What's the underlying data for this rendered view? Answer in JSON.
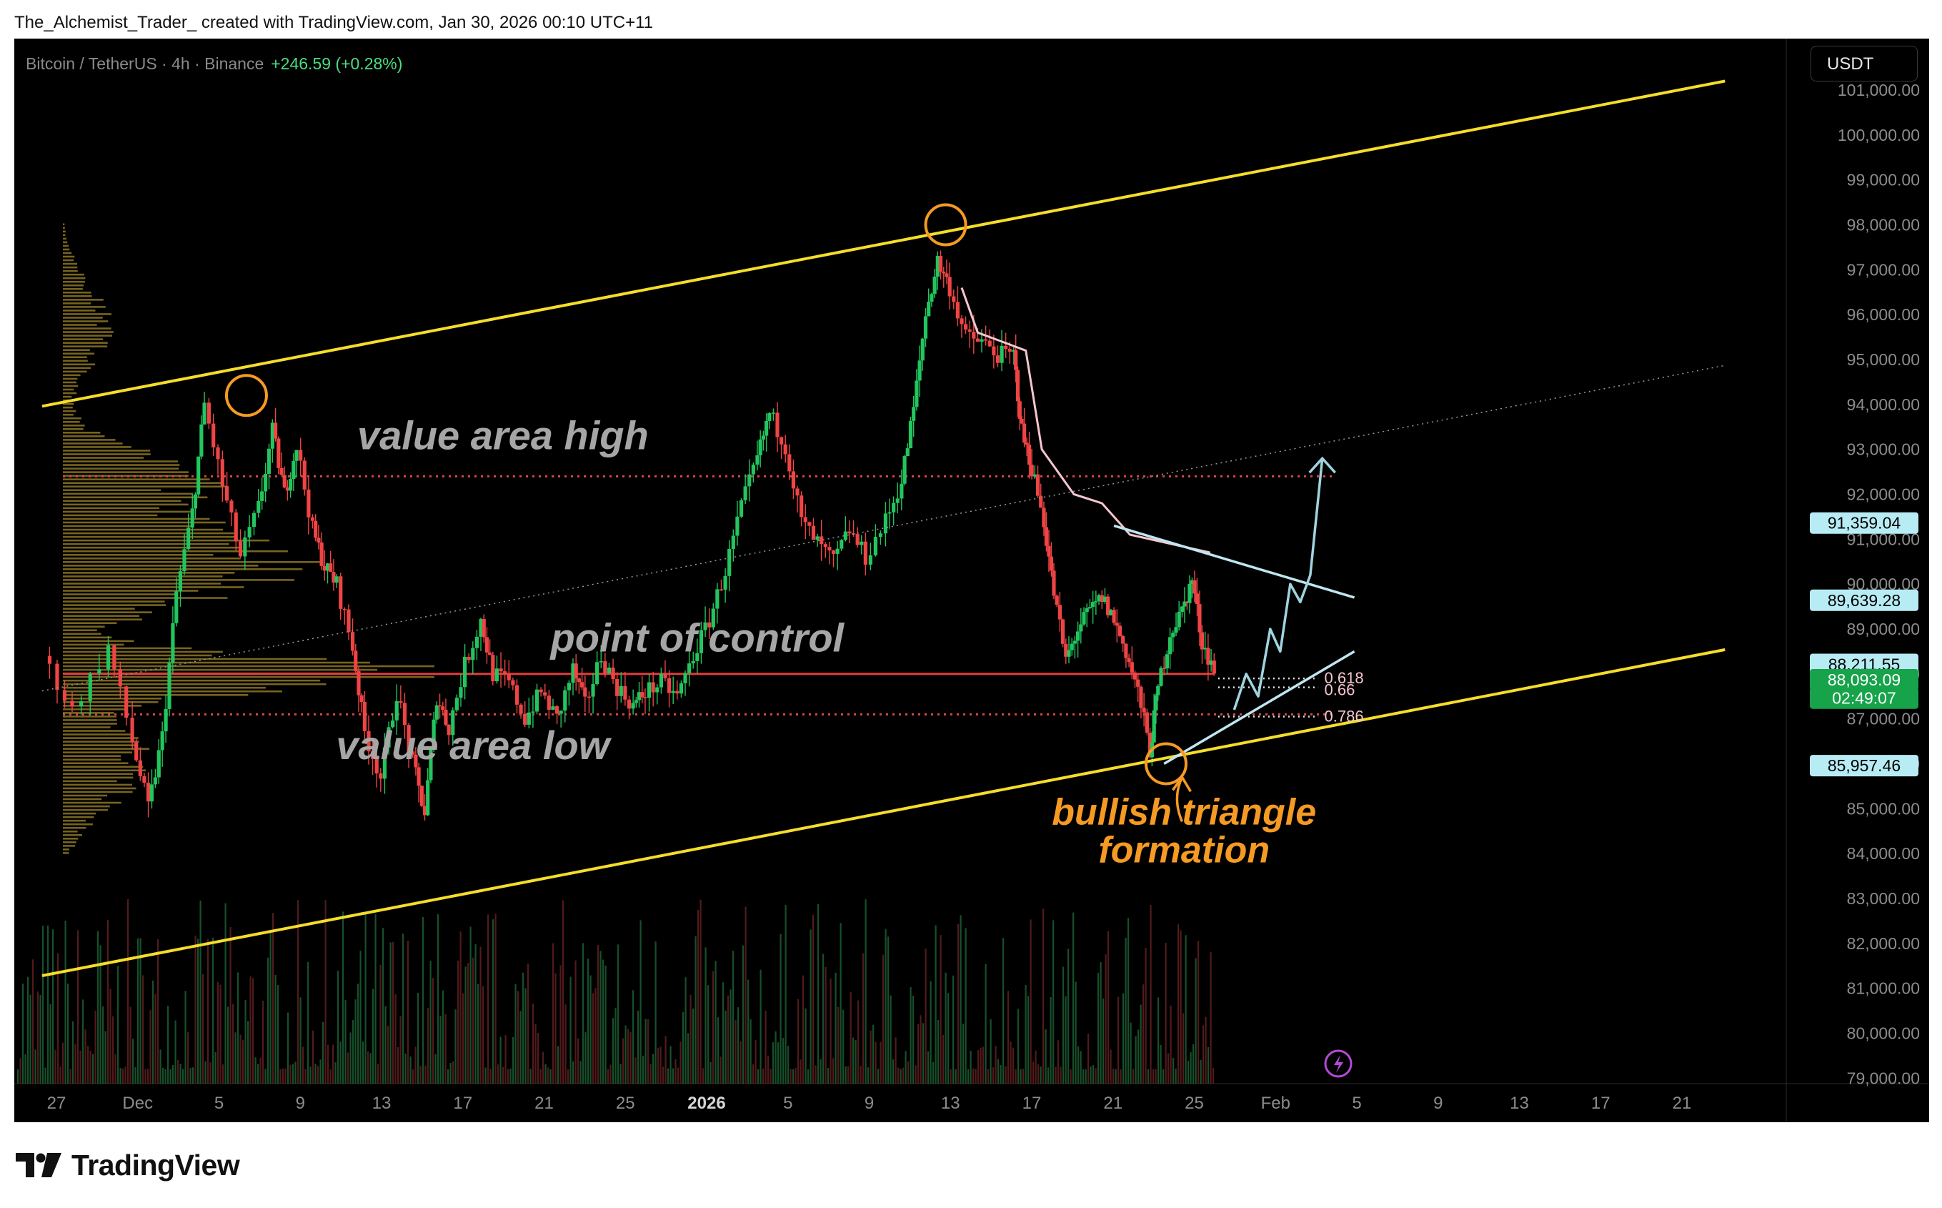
{
  "header": {
    "caption": "The_Alchemist_Trader_ created with TradingView.com, Jan 30, 2026 00:10 UTC+11"
  },
  "symbol_bar": {
    "symbol": "Bitcoin / TetherUS · 4h · Binance",
    "change": "+246.59 (+0.28%)"
  },
  "currency_button": "USDT",
  "footer": {
    "logo_text": "TradingView"
  },
  "colors": {
    "background": "#000000",
    "channel": "#f5dd2a",
    "poc_line": "#e23b3b",
    "value_area_dots": "#d9464a",
    "candle_up": "#22c55e",
    "candle_down": "#ef4444",
    "volume_profile": "#d8b63a",
    "triangle_lines": "#bfe6f1",
    "projection": "#9fd4df",
    "vwap_line": "#f5c6cf",
    "annotation_grey": "#a6a6a6",
    "annotation_orange": "#f59a23",
    "current_price_bg": "#16a34a"
  },
  "chart_data": {
    "type": "candlestick",
    "symbol": "Bitcoin / TetherUS",
    "timeframe": "4h",
    "exchange": "Binance",
    "y_axis": {
      "ticks": [
        "101,000.00",
        "100,000.00",
        "99,000.00",
        "98,000.00",
        "97,000.00",
        "96,000.00",
        "95,000.00",
        "94,000.00",
        "93,000.00",
        "92,000.00",
        "91,000.00",
        "90,000.00",
        "89,000.00",
        "88,000.00",
        "87,000.00",
        "86,000.00",
        "85,000.00",
        "84,000.00",
        "83,000.00",
        "82,000.00",
        "81,000.00",
        "80,000.00",
        "79,000.00"
      ],
      "range": [
        78800,
        101300
      ]
    },
    "x_axis": {
      "ticks": [
        {
          "label": "27",
          "bold": false
        },
        {
          "label": "Dec",
          "bold": false
        },
        {
          "label": "5",
          "bold": false
        },
        {
          "label": "9",
          "bold": false
        },
        {
          "label": "13",
          "bold": false
        },
        {
          "label": "17",
          "bold": false
        },
        {
          "label": "21",
          "bold": false
        },
        {
          "label": "25",
          "bold": false
        },
        {
          "label": "2026",
          "bold": true
        },
        {
          "label": "5",
          "bold": false
        },
        {
          "label": "9",
          "bold": false
        },
        {
          "label": "13",
          "bold": false
        },
        {
          "label": "17",
          "bold": false
        },
        {
          "label": "21",
          "bold": false
        },
        {
          "label": "25",
          "bold": false
        },
        {
          "label": "Feb",
          "bold": false
        },
        {
          "label": "5",
          "bold": false
        },
        {
          "label": "9",
          "bold": false
        },
        {
          "label": "13",
          "bold": false
        },
        {
          "label": "17",
          "bold": false
        },
        {
          "label": "21",
          "bold": false
        }
      ]
    },
    "price_path": [
      [
        -1.5,
        88400
      ],
      [
        0,
        87200
      ],
      [
        1.8,
        88600
      ],
      [
        3,
        86500
      ],
      [
        3.8,
        85000
      ],
      [
        4.5,
        86600
      ],
      [
        5.2,
        89800
      ],
      [
        6,
        91600
      ],
      [
        6.6,
        94000
      ],
      [
        7.5,
        92200
      ],
      [
        8.4,
        90600
      ],
      [
        9.3,
        91700
      ],
      [
        10,
        93400
      ],
      [
        10.6,
        92000
      ],
      [
        11.2,
        93100
      ],
      [
        12,
        91200
      ],
      [
        12.6,
        90400
      ],
      [
        13.2,
        90000
      ],
      [
        14,
        88600
      ],
      [
        14.6,
        86700
      ],
      [
        15.4,
        85700
      ],
      [
        16.2,
        87600
      ],
      [
        17,
        86000
      ],
      [
        17.6,
        84900
      ],
      [
        18.2,
        87500
      ],
      [
        18.8,
        86800
      ],
      [
        19.6,
        88200
      ],
      [
        20.4,
        89200
      ],
      [
        21,
        88000
      ],
      [
        21.8,
        87800
      ],
      [
        22.6,
        87000
      ],
      [
        23.4,
        87600
      ],
      [
        24.2,
        87000
      ],
      [
        25,
        88100
      ],
      [
        25.6,
        87300
      ],
      [
        26.4,
        88400
      ],
      [
        27.2,
        87700
      ],
      [
        28,
        87300
      ],
      [
        28.6,
        87600
      ],
      [
        29.4,
        87800
      ],
      [
        30.2,
        87500
      ],
      [
        31,
        88400
      ],
      [
        31.8,
        89200
      ],
      [
        32.6,
        90300
      ],
      [
        33.4,
        91700
      ],
      [
        34.2,
        92800
      ],
      [
        34.8,
        93800
      ],
      [
        35.6,
        93100
      ],
      [
        36.4,
        91400
      ],
      [
        37.2,
        90900
      ],
      [
        38,
        90500
      ],
      [
        38.8,
        91200
      ],
      [
        39.6,
        90600
      ],
      [
        40.6,
        91400
      ],
      [
        41.4,
        92300
      ],
      [
        42,
        93900
      ],
      [
        42.6,
        96000
      ],
      [
        43.2,
        97200
      ],
      [
        43.8,
        96600
      ],
      [
        44.6,
        95500
      ],
      [
        45.4,
        95400
      ],
      [
        46.2,
        95100
      ],
      [
        47,
        95100
      ],
      [
        47.4,
        93400
      ],
      [
        47.9,
        92600
      ],
      [
        48.5,
        91400
      ],
      [
        49,
        89800
      ],
      [
        49.6,
        88300
      ],
      [
        50.2,
        89000
      ],
      [
        50.8,
        89400
      ],
      [
        51.4,
        89700
      ],
      [
        52,
        89200
      ],
      [
        52.6,
        88500
      ],
      [
        53.2,
        87600
      ],
      [
        53.8,
        86300
      ],
      [
        54.2,
        87700
      ],
      [
        54.8,
        88900
      ],
      [
        55.4,
        89400
      ],
      [
        55.9,
        90100
      ],
      [
        56.4,
        88700
      ],
      [
        57,
        88093
      ]
    ],
    "last_index": 57,
    "candles_per_path_segment": 4,
    "volume_profile": {
      "price_range": [
        84000,
        98000
      ],
      "shape_centers": [
        {
          "price": 88000,
          "weight": 1.0,
          "spread": 500
        },
        {
          "price": 90400,
          "weight": 0.6,
          "spread": 1100
        },
        {
          "price": 92300,
          "weight": 0.35,
          "spread": 900
        },
        {
          "price": 86000,
          "weight": 0.22,
          "spread": 1300
        },
        {
          "price": 95700,
          "weight": 0.12,
          "spread": 1300
        }
      ]
    },
    "overlays": {
      "channel_upper": {
        "from": [
          -1.5,
          93960
        ],
        "to": [
          82.5,
          101200
        ]
      },
      "channel_middle": {
        "from": [
          -1.5,
          87620
        ],
        "to": [
          82.5,
          94870
        ]
      },
      "channel_lower": {
        "from": [
          -1.5,
          81280
        ],
        "to": [
          82.5,
          88540
        ]
      },
      "point_of_control": 88000,
      "value_area_high": 92400,
      "value_area_low": 87100,
      "poc_extends_to_index": 57,
      "triangle_upper": {
        "from": [
          52,
          91300
        ],
        "to": [
          64,
          89700
        ]
      },
      "triangle_lower": {
        "from": [
          54.5,
          86000
        ],
        "to": [
          64,
          88500
        ]
      },
      "vwap_line": [
        [
          44.4,
          96600
        ],
        [
          45.2,
          95600
        ],
        [
          47.6,
          95200
        ],
        [
          48.4,
          93000
        ],
        [
          50,
          92000
        ],
        [
          51.4,
          91800
        ],
        [
          52.8,
          91100
        ],
        [
          56.8,
          90700
        ]
      ],
      "projection_path": [
        [
          58,
          87200
        ],
        [
          58.6,
          88000
        ],
        [
          59.2,
          87500
        ],
        [
          59.8,
          89000
        ],
        [
          60.3,
          88500
        ],
        [
          60.8,
          90000
        ],
        [
          61.3,
          89600
        ],
        [
          61.8,
          90200
        ],
        [
          62.4,
          92800
        ]
      ],
      "fib_levels": [
        {
          "label": "0.618",
          "price": 87900
        },
        {
          "label": "0.66",
          "price": 87700
        },
        {
          "label": "0.786",
          "price": 87050
        }
      ],
      "circles": [
        {
          "index": 8.7,
          "price": 94200
        },
        {
          "index": 43.6,
          "price": 98000
        },
        {
          "index": 54.6,
          "price": 86000
        }
      ]
    },
    "annotations": [
      {
        "text": "value area high",
        "index": 21.5,
        "price": 93000,
        "color": "grey"
      },
      {
        "text": "point of control",
        "index": 31.2,
        "price": 88500,
        "color": "grey"
      },
      {
        "text": "value area low",
        "index": 20,
        "price": 86100,
        "color": "grey"
      },
      {
        "text": "bullish triangle",
        "index": 55.5,
        "price": 84650,
        "color": "orange"
      },
      {
        "text": "formation",
        "index": 55.5,
        "price": 83800,
        "color": "orange"
      }
    ],
    "price_labels": [
      {
        "text": "91,359.04",
        "price": 91359.04,
        "bg": "#b8ecf5",
        "color": "#000000"
      },
      {
        "text": "89,639.28",
        "price": 89639.28,
        "bg": "#b8ecf5",
        "color": "#000000"
      },
      {
        "text": "88,211.55",
        "price": 88211.55,
        "bg": "#b8ecf5",
        "color": "#000000"
      },
      {
        "text": "88,093.09",
        "price": 87870,
        "bg": "#16a34a",
        "color": "#ffffff"
      },
      {
        "text": "02:49:07",
        "price": 87460,
        "bg": "#16a34a",
        "color": "#ffffff"
      },
      {
        "text": "85,957.46",
        "price": 85957.46,
        "bg": "#b8ecf5",
        "color": "#000000"
      }
    ]
  }
}
